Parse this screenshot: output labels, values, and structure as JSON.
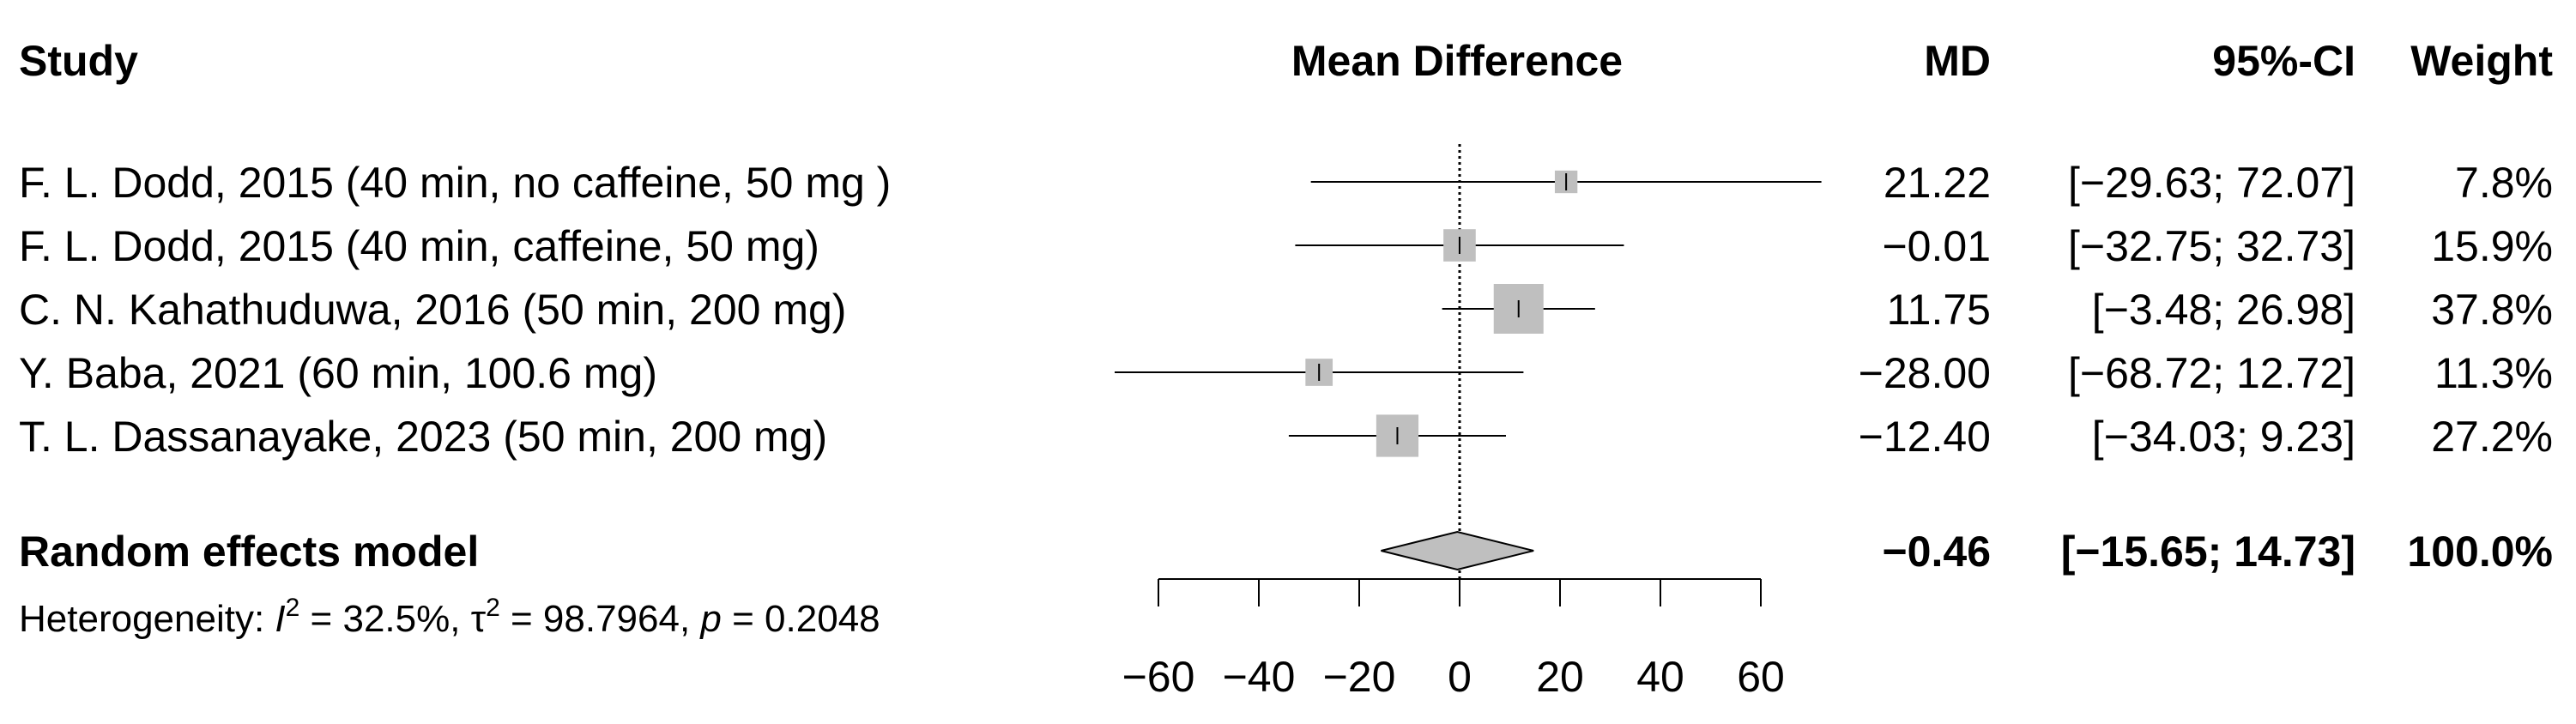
{
  "headers": {
    "study": "Study",
    "effect": "Mean Difference",
    "md": "MD",
    "ci": "95%-CI",
    "weight": "Weight"
  },
  "chart_data": {
    "type": "forest",
    "xlim": [
      -60,
      60
    ],
    "ticks": [
      -60,
      -40,
      -20,
      0,
      20,
      40,
      60
    ],
    "tick_labels": [
      "−60",
      "−40",
      "−20",
      "0",
      "20",
      "40",
      "60"
    ],
    "reference_line": 0,
    "studies": [
      {
        "label": "F. L. Dodd, 2015 (40 min, no caffeine, 50 mg )",
        "md": 21.22,
        "lower": -29.63,
        "upper": 72.07,
        "weight": 7.8,
        "md_text": "21.22",
        "ci_text": "[−29.63; 72.07]",
        "weight_text": "7.8%"
      },
      {
        "label": "F. L. Dodd, 2015 (40 min, caffeine, 50 mg)",
        "md": -0.01,
        "lower": -32.75,
        "upper": 32.73,
        "weight": 15.9,
        "md_text": "−0.01",
        "ci_text": "[−32.75; 32.73]",
        "weight_text": "15.9%"
      },
      {
        "label": "C. N. Kahathuduwa, 2016 (50 min, 200 mg)",
        "md": 11.75,
        "lower": -3.48,
        "upper": 26.98,
        "weight": 37.8,
        "md_text": "11.75",
        "ci_text": "[−3.48; 26.98]",
        "weight_text": "37.8%"
      },
      {
        "label": "Y. Baba, 2021 (60 min, 100.6 mg)",
        "md": -28.0,
        "lower": -68.72,
        "upper": 12.72,
        "weight": 11.3,
        "md_text": "−28.00",
        "ci_text": "[−68.72; 12.72]",
        "weight_text": "11.3%"
      },
      {
        "label": "T. L. Dassanayake, 2023 (50 min, 200 mg)",
        "md": -12.4,
        "lower": -34.03,
        "upper": 9.23,
        "weight": 27.2,
        "md_text": "−12.40",
        "ci_text": "[−34.03; 9.23]",
        "weight_text": "27.2%"
      }
    ],
    "pooled": {
      "label": "Random effects model",
      "md": -0.46,
      "lower": -15.65,
      "upper": 14.73,
      "weight": 100.0,
      "md_text": "−0.46",
      "ci_text": "[−15.65; 14.73]",
      "weight_text": "100.0%"
    },
    "heterogeneity": {
      "prefix": "Heterogeneity: ",
      "i2_symbol": "I",
      "i2_value": " = 32.5%, ",
      "tau2_symbol": "τ",
      "tau2_value": " = 98.7964, ",
      "p_symbol": "p",
      "p_value": " = 0.2048",
      "superscript": "2"
    },
    "colors": {
      "square": "#bfbfbf",
      "diamond": "#bfbfbf",
      "line": "#000000"
    }
  }
}
